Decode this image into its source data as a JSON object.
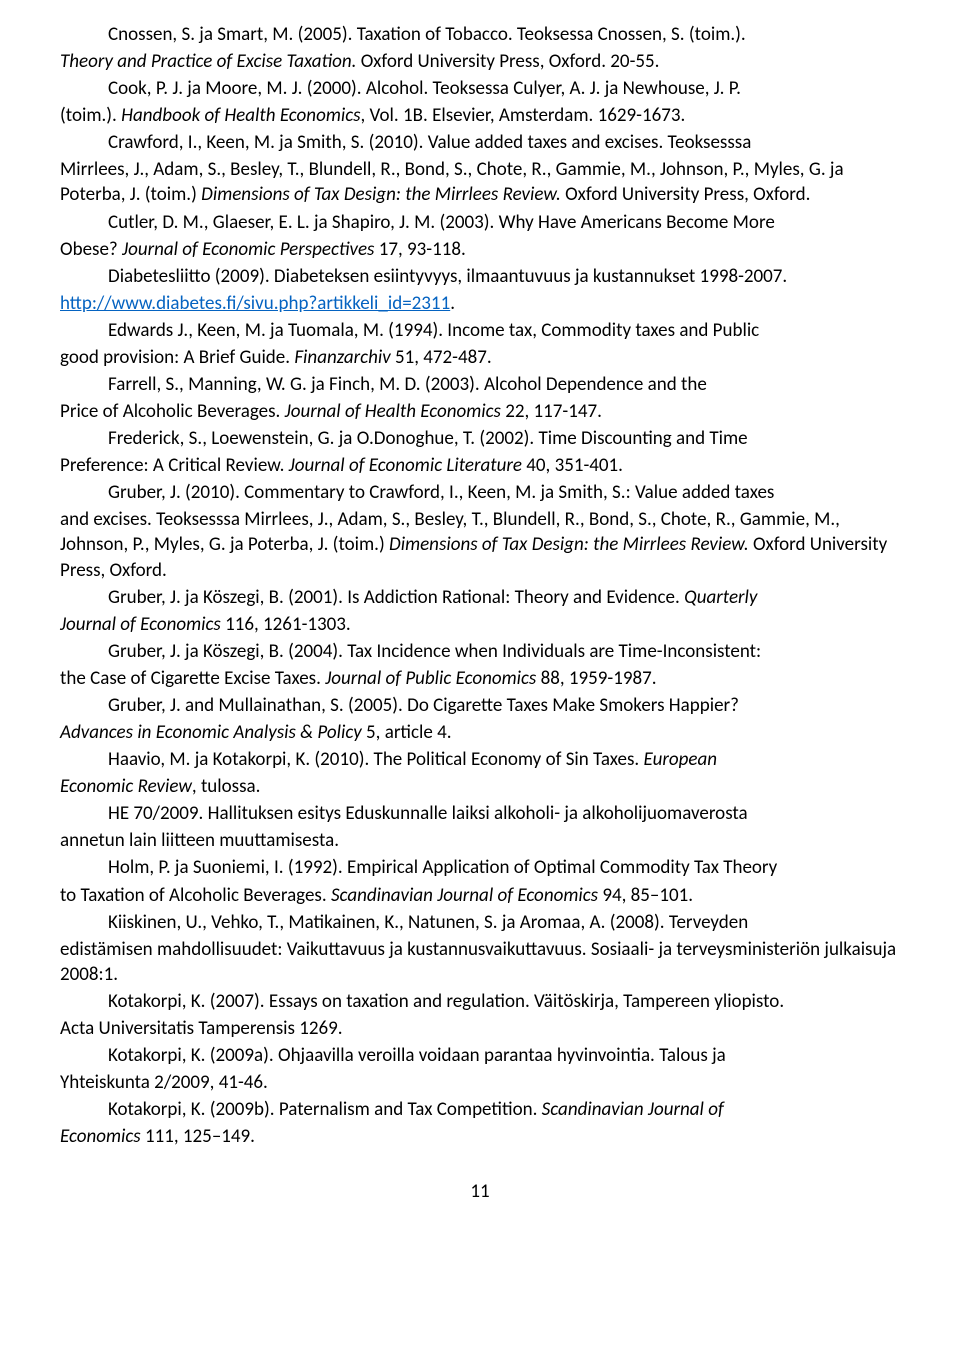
{
  "page_number": "11",
  "link_url_text": "http://www.diabetes.fi/sivu.php?artikkeli_id=2311",
  "refs": [
    {
      "segs": [
        {
          "t": "Cnossen, S. ja Smart, M. (2005). Taxation of Tobacco. Teoksessa Cnossen, S. (toim.). "
        }
      ],
      "cont": true
    },
    {
      "noindent": true,
      "segs": [
        {
          "t": "Theory and Practice of Excise Taxation.",
          "i": true
        },
        {
          "t": " Oxford University Press, Oxford. 20-55."
        }
      ]
    },
    {
      "segs": [
        {
          "t": "Cook, P. J. ja Moore, M. J. (2000). Alcohol. Teoksessa Culyer, A. J. ja Newhouse, J. P. "
        }
      ],
      "cont": true
    },
    {
      "noindent": true,
      "segs": [
        {
          "t": "(toim.). "
        },
        {
          "t": "Handbook of Health Economics",
          "i": true
        },
        {
          "t": ", Vol. 1B. Elsevier, Amsterdam. 1629-1673."
        }
      ]
    },
    {
      "segs": [
        {
          "t": "Crawford, I., Keen, M. ja Smith, S. (2010). Value added taxes and excises. Teoksesssa "
        }
      ],
      "cont": true
    },
    {
      "noindent": true,
      "segs": [
        {
          "t": "Mirrlees, J., Adam, S., Besley, T., Blundell, R., Bond, S., Chote, R., Gammie, M., Johnson, P., Myles, G. ja Poterba, J. (toim.) "
        },
        {
          "t": "Dimensions of Tax Design: the Mirrlees Review.",
          "i": true
        },
        {
          "t": " Oxford University Press, Oxford."
        }
      ]
    },
    {
      "segs": [
        {
          "t": "Cutler, D. M., Glaeser, E. L. ja Shapiro, J. M. (2003). Why Have Americans Become More "
        }
      ],
      "cont": true
    },
    {
      "noindent": true,
      "segs": [
        {
          "t": "Obese? "
        },
        {
          "t": "Journal of Economic Perspectives",
          "i": true
        },
        {
          "t": " 17, 93-118."
        }
      ]
    },
    {
      "segs": [
        {
          "t": "Diabetesliitto (2009). Diabeteksen esiintyvyys, ilmaantuvuus ja kustannukset 1998-2007. "
        }
      ],
      "cont": true
    },
    {
      "noindent": true,
      "segs": [
        {
          "link": true
        },
        {
          "t": "."
        }
      ]
    },
    {
      "segs": [
        {
          "t": "Edwards J., Keen, M. ja Tuomala, M. (1994). Income tax, Commodity taxes and Public "
        }
      ],
      "cont": true
    },
    {
      "noindent": true,
      "segs": [
        {
          "t": "good provision: A Brief Guide. "
        },
        {
          "t": "Finanzarchiv",
          "i": true
        },
        {
          "t": " 51, 472-487."
        }
      ]
    },
    {
      "segs": [
        {
          "t": "Farrell, S., Manning, W. G. ja Finch, M. D. (2003). Alcohol Dependence and the"
        }
      ]
    },
    {
      "noindent": true,
      "segs": [
        {
          "t": "Price of Alcoholic Beverages. "
        },
        {
          "t": "Journal of Health Economics",
          "i": true
        },
        {
          "t": " 22, 117-147."
        }
      ]
    },
    {
      "segs": [
        {
          "t": "Frederick, S., Loewenstein, G. ja O.Donoghue, T. (2002). Time Discounting and Time "
        }
      ],
      "cont": true
    },
    {
      "noindent": true,
      "segs": [
        {
          "t": "Preference: A Critical Review. "
        },
        {
          "t": "Journal of Economic Literature",
          "i": true
        },
        {
          "t": " 40, 351-401."
        }
      ]
    },
    {
      "segs": [
        {
          "t": "Gruber, J. (2010). Commentary to Crawford, I., Keen, M. ja Smith, S.: Value added taxes "
        }
      ],
      "cont": true
    },
    {
      "noindent": true,
      "segs": [
        {
          "t": "and excises. Teoksesssa Mirrlees, J., Adam, S., Besley, T., Blundell, R., Bond, S., Chote, R., Gammie, M., Johnson, P., Myles, G. ja Poterba, J. (toim.) "
        },
        {
          "t": "Dimensions of Tax Design: the Mirrlees Review.",
          "i": true
        },
        {
          "t": " Oxford University Press, Oxford."
        }
      ]
    },
    {
      "segs": [
        {
          "t": "Gruber, J. ja Köszegi, B. (2001). Is Addiction Rational: Theory and Evidence. "
        },
        {
          "t": "Quarterly ",
          "i": true
        }
      ],
      "cont": true
    },
    {
      "noindent": true,
      "segs": [
        {
          "t": "Journal of Economics",
          "i": true
        },
        {
          "t": " 116, 1261-1303."
        }
      ]
    },
    {
      "segs": [
        {
          "t": "Gruber, J. ja Köszegi, B. (2004). Tax Incidence when Individuals are Time-Inconsistent: "
        }
      ],
      "cont": true
    },
    {
      "noindent": true,
      "segs": [
        {
          "t": "the Case of Cigarette Excise Taxes. "
        },
        {
          "t": "Journal of Public Economics",
          "i": true
        },
        {
          "t": " 88, 1959-1987."
        }
      ]
    },
    {
      "segs": [
        {
          "t": "Gruber, J. and Mullainathan, S. (2005). Do Cigarette Taxes Make Smokers Happier? "
        }
      ],
      "cont": true
    },
    {
      "noindent": true,
      "segs": [
        {
          "t": "Advances in Economic Analysis & Policy",
          "i": true
        },
        {
          "t": " 5, article 4."
        }
      ]
    },
    {
      "segs": [
        {
          "t": "Haavio, M. ja Kotakorpi, K. (2010). The Political Economy of Sin Taxes. "
        },
        {
          "t": "European ",
          "i": true
        }
      ],
      "cont": true
    },
    {
      "noindent": true,
      "segs": [
        {
          "t": "Economic Review",
          "i": true
        },
        {
          "t": ", tulossa."
        }
      ]
    },
    {
      "segs": [
        {
          "t": "HE 70/2009. Hallituksen esitys Eduskunnalle laiksi alkoholi- ja alkoholijuomaverosta "
        }
      ],
      "cont": true
    },
    {
      "noindent": true,
      "segs": [
        {
          "t": "annetun lain liitteen muuttamisesta."
        }
      ]
    },
    {
      "segs": [
        {
          "t": "Holm, P. ja Suoniemi, I. (1992). Empirical Application of Optimal Commodity Tax Theory "
        }
      ],
      "cont": true
    },
    {
      "noindent": true,
      "segs": [
        {
          "t": "to Taxation of Alcoholic Beverages. "
        },
        {
          "t": "Scandinavian Journal of Economics",
          "i": true
        },
        {
          "t": " 94, 85–101."
        }
      ]
    },
    {
      "segs": [
        {
          "t": "Kiiskinen, U., Vehko, T., Matikainen, K., Natunen, S. ja Aromaa, A. (2008). Terveyden "
        }
      ],
      "cont": true
    },
    {
      "noindent": true,
      "segs": [
        {
          "t": "edistämisen mahdollisuudet: Vaikuttavuus ja kustannusvaikuttavuus. Sosiaali- ja terveysministeriön julkaisuja 2008:1."
        }
      ]
    },
    {
      "segs": [
        {
          "t": "Kotakorpi, K. (2007). Essays on taxation and regulation. Väitöskirja, Tampereen yliopisto. "
        }
      ],
      "cont": true
    },
    {
      "noindent": true,
      "segs": [
        {
          "t": "Acta Universitatis Tamperensis 1269."
        }
      ]
    },
    {
      "segs": [
        {
          "t": "Kotakorpi, K. (2009a). Ohjaavilla veroilla voidaan parantaa hyvinvointia. Talous ja "
        }
      ],
      "cont": true
    },
    {
      "noindent": true,
      "segs": [
        {
          "t": "Yhteiskunta 2/2009, 41-46."
        }
      ]
    },
    {
      "segs": [
        {
          "t": "Kotakorpi, K. (2009b). Paternalism and Tax Competition. "
        },
        {
          "t": "Scandinavian Journal of ",
          "i": true
        }
      ],
      "cont": true
    },
    {
      "noindent": true,
      "segs": [
        {
          "t": "Economics",
          "i": true
        },
        {
          "t": " 111, 125–149."
        }
      ]
    }
  ]
}
